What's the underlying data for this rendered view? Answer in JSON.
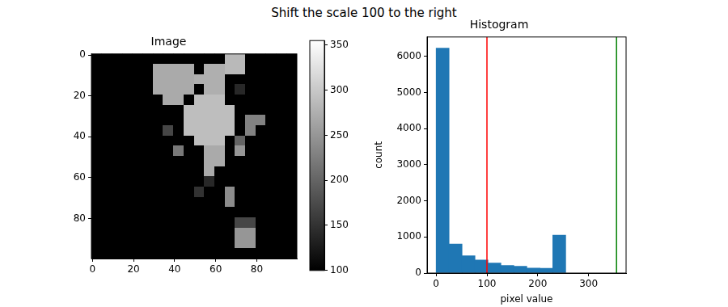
{
  "title": "Shift the scale 100 to the right",
  "chart_data": [
    {
      "type": "heatmap",
      "title": "Image",
      "values": [
        [
          100,
          100,
          100,
          100,
          100,
          100,
          100,
          100,
          100,
          100,
          100,
          100,
          100,
          285,
          285,
          100,
          100,
          100,
          100,
          100
        ],
        [
          100,
          100,
          100,
          100,
          100,
          100,
          270,
          270,
          270,
          270,
          100,
          275,
          275,
          285,
          285,
          100,
          100,
          100,
          100,
          100
        ],
        [
          100,
          100,
          100,
          100,
          100,
          100,
          270,
          270,
          270,
          270,
          275,
          275,
          275,
          100,
          100,
          100,
          100,
          100,
          100,
          100
        ],
        [
          100,
          100,
          100,
          100,
          100,
          100,
          270,
          270,
          270,
          270,
          100,
          275,
          275,
          100,
          140,
          100,
          100,
          100,
          100,
          100
        ],
        [
          100,
          100,
          100,
          100,
          100,
          100,
          100,
          270,
          270,
          100,
          290,
          290,
          290,
          100,
          100,
          100,
          100,
          100,
          100,
          100
        ],
        [
          100,
          100,
          100,
          100,
          100,
          100,
          100,
          100,
          100,
          290,
          290,
          290,
          290,
          290,
          100,
          100,
          100,
          100,
          100,
          100
        ],
        [
          100,
          100,
          100,
          100,
          100,
          100,
          100,
          100,
          100,
          290,
          290,
          290,
          290,
          290,
          100,
          230,
          230,
          100,
          100,
          100
        ],
        [
          100,
          100,
          100,
          100,
          100,
          100,
          100,
          170,
          100,
          290,
          290,
          290,
          290,
          290,
          100,
          230,
          100,
          100,
          100,
          100
        ],
        [
          100,
          100,
          100,
          100,
          100,
          100,
          100,
          100,
          100,
          100,
          290,
          290,
          290,
          100,
          200,
          100,
          100,
          100,
          100,
          100
        ],
        [
          100,
          100,
          100,
          100,
          100,
          100,
          100,
          100,
          220,
          100,
          100,
          270,
          270,
          100,
          250,
          100,
          100,
          100,
          100,
          100
        ],
        [
          100,
          100,
          100,
          100,
          100,
          100,
          100,
          100,
          100,
          100,
          100,
          270,
          270,
          100,
          100,
          100,
          100,
          100,
          100,
          100
        ],
        [
          100,
          100,
          100,
          100,
          100,
          100,
          100,
          100,
          100,
          100,
          100,
          270,
          100,
          100,
          100,
          100,
          100,
          100,
          100,
          100
        ],
        [
          100,
          100,
          100,
          100,
          100,
          100,
          100,
          100,
          100,
          100,
          100,
          140,
          100,
          100,
          100,
          100,
          100,
          100,
          100,
          100
        ],
        [
          100,
          100,
          100,
          100,
          100,
          100,
          100,
          100,
          100,
          100,
          150,
          100,
          100,
          240,
          100,
          100,
          100,
          100,
          100,
          100
        ],
        [
          100,
          100,
          100,
          100,
          100,
          100,
          100,
          100,
          100,
          100,
          100,
          100,
          100,
          240,
          100,
          100,
          100,
          100,
          100,
          100
        ],
        [
          100,
          100,
          100,
          100,
          100,
          100,
          100,
          100,
          100,
          100,
          100,
          100,
          100,
          100,
          100,
          100,
          100,
          100,
          100,
          100
        ],
        [
          100,
          100,
          100,
          100,
          100,
          100,
          100,
          100,
          100,
          100,
          100,
          100,
          100,
          100,
          170,
          170,
          100,
          100,
          100,
          100
        ],
        [
          100,
          100,
          100,
          100,
          100,
          100,
          100,
          100,
          100,
          100,
          100,
          100,
          100,
          100,
          250,
          250,
          100,
          100,
          100,
          100
        ],
        [
          100,
          100,
          100,
          100,
          100,
          100,
          100,
          100,
          100,
          100,
          100,
          100,
          100,
          100,
          250,
          250,
          100,
          100,
          100,
          100
        ],
        [
          100,
          100,
          100,
          100,
          100,
          100,
          100,
          100,
          100,
          100,
          100,
          100,
          100,
          100,
          100,
          100,
          100,
          100,
          100,
          100
        ]
      ],
      "xlim": [
        -0.5,
        99.5
      ],
      "xticks": [
        0,
        20,
        40,
        60,
        80
      ],
      "ylim": [
        99.5,
        -0.5
      ],
      "yticks": [
        0,
        20,
        40,
        60,
        80
      ],
      "grid": false,
      "colorbar": {
        "range": [
          100,
          355
        ],
        "ticks": [
          100,
          150,
          200,
          250,
          300,
          350
        ]
      }
    },
    {
      "type": "histogram",
      "title": "Histogram",
      "x_label": "pixel value",
      "y_label": "count",
      "bins": [
        0,
        25.5,
        51,
        76.5,
        102,
        127.5,
        153,
        178.5,
        204,
        229.5,
        255
      ],
      "values": [
        6225,
        806,
        480,
        360,
        280,
        210,
        190,
        140,
        130,
        1050
      ],
      "color": "#1f77b4",
      "xlim": [
        -17.8,
        373.8
      ],
      "xticks": [
        0,
        100,
        200,
        300
      ],
      "ylim": [
        0,
        6536
      ],
      "yticks": [
        0,
        1000,
        2000,
        3000,
        4000,
        5000,
        6000
      ],
      "grid": false,
      "vlines": [
        {
          "x": 100,
          "color": "#ff0000"
        },
        {
          "x": 355,
          "color": "#008000"
        }
      ]
    }
  ]
}
